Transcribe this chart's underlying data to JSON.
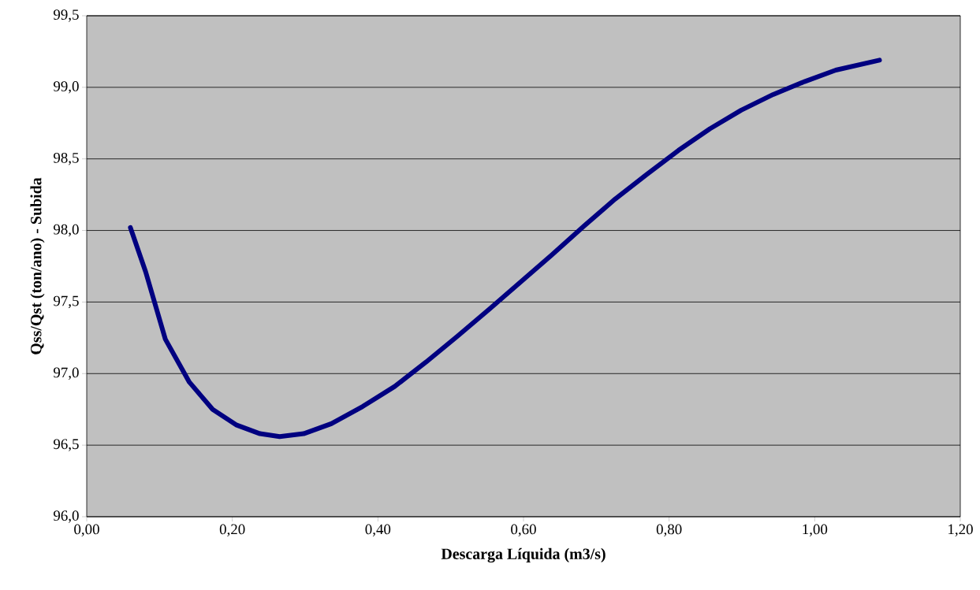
{
  "chart_data": {
    "type": "line",
    "xlabel": "Descarga Líquida (m3/s)",
    "ylabel": "Qss/Qst (ton/ano) - Subida",
    "xlim": [
      0,
      1.2
    ],
    "ylim": [
      96.0,
      99.5
    ],
    "xticks": [
      {
        "value": 0,
        "label": "0,00"
      },
      {
        "value": 0.2,
        "label": "0,20"
      },
      {
        "value": 0.4,
        "label": "0,40"
      },
      {
        "value": 0.6,
        "label": "0,60"
      },
      {
        "value": 0.8,
        "label": "0,80"
      },
      {
        "value": 1.0,
        "label": "1,00"
      },
      {
        "value": 1.2,
        "label": "1,20"
      }
    ],
    "yticks": [
      {
        "value": 96.0,
        "label": "96,0"
      },
      {
        "value": 96.5,
        "label": "96,5"
      },
      {
        "value": 97.0,
        "label": "97,0"
      },
      {
        "value": 97.5,
        "label": "97,5"
      },
      {
        "value": 98.0,
        "label": "98,0"
      },
      {
        "value": 98.5,
        "label": "98,5"
      },
      {
        "value": 99.0,
        "label": "99,0"
      },
      {
        "value": 99.5,
        "label": "99,5"
      }
    ],
    "grid": "y",
    "marker": "none",
    "line_style": "solid",
    "series": [
      {
        "color": "#000080",
        "x": [
          0.06,
          0.081,
          0.108,
          0.141,
          0.173,
          0.206,
          0.238,
          0.265,
          0.298,
          0.336,
          0.379,
          0.423,
          0.466,
          0.509,
          0.553,
          0.596,
          0.639,
          0.683,
          0.726,
          0.769,
          0.813,
          0.856,
          0.899,
          0.943,
          0.986,
          1.029,
          1.089
        ],
        "values": [
          98.02,
          97.71,
          97.24,
          96.94,
          96.75,
          96.64,
          96.58,
          96.56,
          96.58,
          96.65,
          96.77,
          96.91,
          97.08,
          97.26,
          97.45,
          97.64,
          97.83,
          98.03,
          98.22,
          98.39,
          98.56,
          98.71,
          98.84,
          98.95,
          99.04,
          99.12,
          99.19
        ]
      }
    ]
  }
}
